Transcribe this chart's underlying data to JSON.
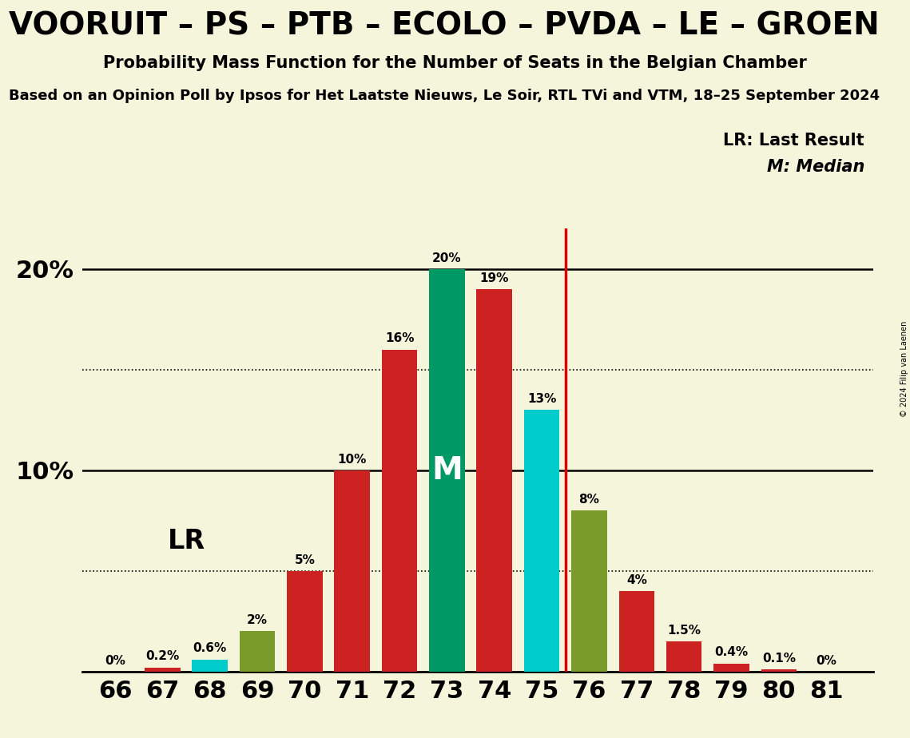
{
  "title_line1": "VOORUIT – PS – PTB – ECOLO – PVDA – LE – GROEN",
  "title_line2": "Probability Mass Function for the Number of Seats in the Belgian Chamber",
  "title_line3": "Based on an Opinion Poll by Ipsos for Het Laatste Nieuws, Le Soir, RTL TVi and VTM, 18–25 September 2024",
  "copyright": "© 2024 Filip van Laenen",
  "seats": [
    66,
    67,
    68,
    69,
    70,
    71,
    72,
    73,
    74,
    75,
    76,
    77,
    78,
    79,
    80,
    81
  ],
  "probabilities": [
    0.0,
    0.2,
    0.6,
    2.0,
    5.0,
    10.0,
    16.0,
    20.0,
    19.0,
    13.0,
    8.0,
    4.0,
    1.5,
    0.4,
    0.1,
    0.0
  ],
  "label_texts": [
    "0%",
    "0.2%",
    "0.6%",
    "2%",
    "5%",
    "10%",
    "16%",
    "20%",
    "19%",
    "13%",
    "8%",
    "4%",
    "1.5%",
    "0.4%",
    "0.1%",
    "0%"
  ],
  "bar_colors": [
    "#cc2222",
    "#cc2222",
    "#00cccc",
    "#7a9a2a",
    "#cc2222",
    "#cc2222",
    "#cc2222",
    "#009966",
    "#cc2222",
    "#00cccc",
    "#7a9a2a",
    "#cc2222",
    "#cc2222",
    "#cc2222",
    "#cc2222",
    "#cc2222"
  ],
  "median_seat": 73,
  "last_result_seat": 75,
  "median_color": "#009966",
  "lr_line_color": "#dd0000",
  "background_color": "#f5f5dc",
  "ylim": [
    0,
    22
  ],
  "legend_lr": "LR: Last Result",
  "legend_m": "M: Median",
  "lr_label_text": "LR"
}
